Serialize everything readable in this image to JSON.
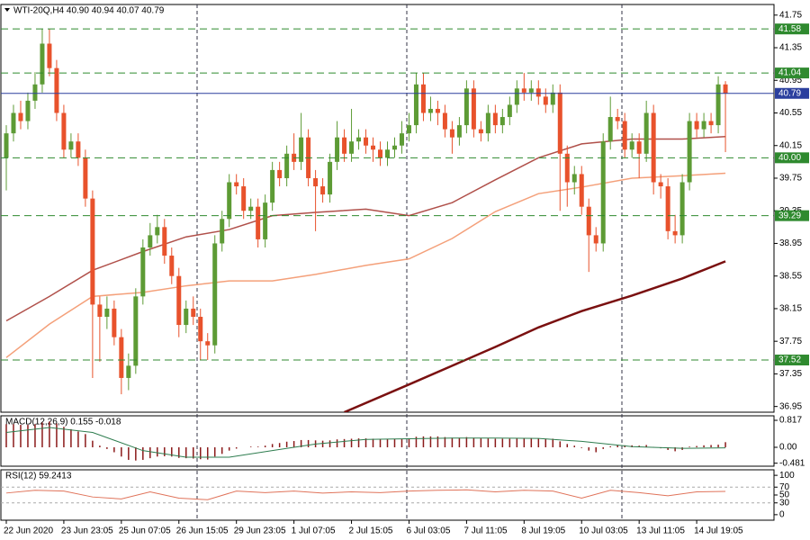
{
  "chart_data": {
    "type": "candlestick",
    "title": "WTI-20Q,H4  40.90 40.94 40.07 40.79",
    "xlim": [
      -0.75,
      106.75
    ],
    "xticks": [
      {
        "value": 0,
        "label": "22 Jun 2020"
      },
      {
        "value": 8,
        "label": "23 Jun 23:05"
      },
      {
        "value": 16,
        "label": "25 Jun 07:05"
      },
      {
        "value": 24,
        "label": "26 Jun 15:05"
      },
      {
        "value": 32,
        "label": "29 Jun 23:05"
      },
      {
        "value": 40,
        "label": "1 Jul 07:05"
      },
      {
        "value": 48,
        "label": "2 Jul 15:05"
      },
      {
        "value": 56,
        "label": "6 Jul 03:05"
      },
      {
        "value": 64,
        "label": "7 Jul 11:05"
      },
      {
        "value": 72,
        "label": "8 Jul 19:05"
      },
      {
        "value": 80,
        "label": "10 Jul 03:05"
      },
      {
        "value": 88,
        "label": "13 Jul 11:05"
      },
      {
        "value": 96,
        "label": "14 Jul 19:05"
      }
    ],
    "ylim": [
      36.88,
      41.88
    ],
    "yticks": [
      41.75,
      41.35,
      40.95,
      40.55,
      40.15,
      39.75,
      39.35,
      38.95,
      38.55,
      38.15,
      37.75,
      37.35,
      36.95
    ],
    "bull_color": "#5d9b35",
    "bear_color": "#e8522c",
    "candles": {
      "open": [
        40.0,
        40.3,
        40.55,
        40.45,
        40.7,
        40.9,
        41.4,
        41.1,
        40.55,
        40.1,
        40.2,
        40.0,
        39.5,
        38.2,
        38.05,
        38.15,
        37.8,
        37.3,
        37.45,
        38.3,
        38.9,
        39.05,
        39.15,
        38.8,
        38.55,
        37.95,
        38.15,
        38.05,
        37.75,
        37.7,
        38.95,
        39.25,
        39.7,
        39.65,
        39.35,
        39.4,
        39.0,
        39.45,
        39.85,
        39.75,
        40.05,
        39.95,
        40.25,
        39.75,
        39.65,
        39.55,
        39.95,
        40.25,
        40.05,
        40.2,
        40.25,
        40.15,
        40.1,
        40.0,
        40.1,
        40.15,
        40.3,
        40.4,
        40.9,
        40.55,
        40.6,
        40.55,
        40.35,
        40.25,
        40.4,
        40.85,
        40.35,
        40.3,
        40.55,
        40.4,
        40.5,
        40.65,
        40.85,
        40.8,
        40.85,
        40.75,
        40.65,
        40.8,
        40.05,
        39.7,
        39.8,
        39.4,
        39.05,
        38.95,
        40.2,
        40.5,
        40.45,
        40.1,
        40.2,
        40.05,
        40.55,
        39.7,
        39.65,
        39.1,
        39.05,
        39.7,
        40.45,
        40.35,
        40.45,
        40.4,
        40.9
      ],
      "high": [
        40.4,
        40.65,
        40.7,
        40.8,
        41.05,
        41.58,
        41.58,
        41.2,
        40.65,
        40.3,
        40.3,
        40.1,
        39.6,
        38.3,
        38.3,
        38.25,
        37.9,
        37.6,
        38.4,
        39.0,
        39.2,
        39.3,
        39.25,
        38.9,
        38.65,
        38.25,
        38.3,
        38.15,
        37.85,
        39.05,
        39.35,
        39.8,
        39.8,
        39.75,
        39.5,
        39.5,
        39.55,
        39.95,
        39.95,
        40.15,
        40.3,
        40.55,
        40.35,
        39.85,
        39.75,
        40.05,
        40.45,
        40.35,
        40.6,
        40.35,
        40.35,
        40.25,
        40.2,
        40.2,
        40.25,
        40.45,
        40.55,
        41.04,
        41.04,
        40.75,
        40.7,
        40.65,
        40.45,
        40.5,
        40.95,
        40.95,
        40.45,
        40.65,
        40.65,
        40.6,
        40.75,
        40.95,
        41.04,
        40.95,
        40.95,
        40.85,
        40.9,
        40.9,
        40.15,
        39.9,
        39.9,
        39.5,
        39.15,
        40.3,
        40.75,
        40.6,
        40.55,
        40.3,
        40.3,
        40.7,
        40.65,
        39.8,
        39.75,
        39.3,
        39.8,
        40.55,
        40.55,
        40.55,
        40.55,
        41.0,
        40.94
      ],
      "low": [
        39.6,
        40.2,
        40.35,
        40.35,
        40.6,
        40.8,
        41.0,
        40.45,
        40.0,
        40.0,
        39.9,
        39.4,
        37.3,
        37.5,
        37.9,
        37.7,
        37.1,
        37.15,
        37.35,
        38.2,
        38.8,
        38.95,
        38.7,
        38.45,
        37.8,
        37.85,
        37.95,
        37.52,
        37.52,
        37.6,
        38.85,
        39.15,
        39.55,
        39.25,
        39.25,
        38.9,
        38.9,
        39.35,
        39.65,
        39.65,
        39.85,
        39.85,
        39.65,
        39.1,
        39.45,
        39.45,
        39.85,
        39.95,
        39.95,
        40.1,
        40.05,
        39.95,
        39.9,
        39.9,
        40.0,
        40.05,
        40.2,
        40.3,
        40.45,
        40.45,
        40.4,
        40.25,
        40.05,
        40.15,
        40.3,
        40.25,
        40.2,
        40.2,
        40.3,
        40.3,
        40.4,
        40.55,
        40.7,
        40.7,
        40.65,
        40.55,
        40.55,
        39.35,
        39.4,
        39.55,
        39.3,
        38.6,
        38.85,
        38.85,
        40.1,
        40.35,
        40.0,
        40.0,
        39.75,
        39.95,
        39.55,
        39.5,
        39.0,
        38.95,
        38.95,
        39.6,
        40.25,
        40.25,
        40.3,
        40.3,
        40.07
      ],
      "close": [
        40.3,
        40.55,
        40.45,
        40.7,
        40.9,
        41.4,
        41.1,
        40.55,
        40.1,
        40.2,
        40.0,
        39.5,
        38.2,
        38.05,
        38.15,
        37.8,
        37.3,
        37.45,
        38.3,
        38.9,
        39.05,
        39.15,
        38.8,
        38.55,
        37.95,
        38.15,
        38.05,
        37.75,
        37.7,
        38.95,
        39.25,
        39.7,
        39.65,
        39.35,
        39.4,
        39.0,
        39.45,
        39.85,
        39.75,
        40.05,
        39.95,
        40.25,
        39.75,
        39.65,
        39.55,
        39.95,
        40.25,
        40.05,
        40.2,
        40.25,
        40.15,
        40.1,
        40.0,
        40.1,
        40.15,
        40.3,
        40.4,
        40.9,
        40.55,
        40.6,
        40.55,
        40.35,
        40.25,
        40.4,
        40.85,
        40.35,
        40.3,
        40.55,
        40.4,
        40.5,
        40.65,
        40.85,
        40.8,
        40.85,
        40.75,
        40.65,
        40.8,
        40.05,
        39.7,
        39.8,
        39.4,
        39.05,
        38.95,
        40.2,
        40.5,
        40.45,
        40.1,
        40.2,
        40.05,
        40.55,
        39.7,
        39.65,
        39.1,
        39.05,
        39.7,
        40.45,
        40.35,
        40.45,
        40.4,
        40.9,
        40.79
      ]
    },
    "overlays": [
      {
        "color": "#b0504a",
        "x": [
          0,
          6,
          12,
          19,
          25,
          31,
          37,
          43,
          50,
          56,
          62,
          68,
          74,
          80,
          87,
          94,
          100
        ],
        "values": [
          38.0,
          38.3,
          38.62,
          38.85,
          39.03,
          39.12,
          39.29,
          39.33,
          39.37,
          39.29,
          39.45,
          39.73,
          40.0,
          40.17,
          40.23,
          40.23,
          40.26
        ]
      },
      {
        "color": "#f4a07a",
        "x": [
          0,
          6,
          12,
          19,
          25,
          31,
          37,
          43,
          50,
          56,
          62,
          68,
          74,
          80,
          87,
          94,
          100
        ],
        "values": [
          37.55,
          37.96,
          38.3,
          38.35,
          38.43,
          38.49,
          38.49,
          38.57,
          38.68,
          38.76,
          39.01,
          39.34,
          39.56,
          39.64,
          39.75,
          39.78,
          39.81
        ]
      },
      {
        "color": "#7a1010",
        "x": [
          47,
          56,
          62,
          68,
          74,
          80,
          87,
          94,
          100
        ],
        "values": [
          36.88,
          37.22,
          37.45,
          37.68,
          37.92,
          38.12,
          38.31,
          38.52,
          38.73
        ]
      }
    ],
    "levels": {
      "color": "#2f8a2f",
      "values": [
        41.58,
        41.04,
        {
          "value": 40,
          "label": "40.00"
        },
        39.29,
        37.52
      ]
    },
    "price_line": {
      "color": "#2b3f9e",
      "value": 40.79
    },
    "macd": {
      "title": "MACD(12,26,9) 0.155 -0.018",
      "ylim": [
        -0.572,
        0.954
      ],
      "yticks": [
        0.817,
        {
          "value": 0,
          "label": "0.00"
        },
        -0.481
      ],
      "histogram_color": "#8b1a1a",
      "histogram": [
        0.7,
        0.7,
        0.68,
        0.68,
        0.7,
        0.75,
        0.78,
        0.72,
        0.62,
        0.55,
        0.48,
        0.4,
        0.2,
        0.05,
        -0.05,
        -0.15,
        -0.28,
        -0.38,
        -0.4,
        -0.38,
        -0.33,
        -0.28,
        -0.27,
        -0.28,
        -0.32,
        -0.33,
        -0.34,
        -0.36,
        -0.37,
        -0.28,
        -0.2,
        -0.1,
        -0.04,
        0.0,
        0.02,
        0.02,
        0.05,
        0.1,
        0.13,
        0.17,
        0.19,
        0.22,
        0.22,
        0.21,
        0.2,
        0.21,
        0.24,
        0.25,
        0.26,
        0.27,
        0.27,
        0.26,
        0.25,
        0.25,
        0.25,
        0.26,
        0.27,
        0.32,
        0.33,
        0.33,
        0.33,
        0.31,
        0.29,
        0.29,
        0.31,
        0.29,
        0.27,
        0.27,
        0.26,
        0.26,
        0.26,
        0.27,
        0.27,
        0.28,
        0.27,
        0.26,
        0.26,
        0.18,
        0.1,
        0.05,
        -0.02,
        -0.1,
        -0.15,
        -0.05,
        0.03,
        0.07,
        0.06,
        0.06,
        0.05,
        0.07,
        0.01,
        -0.03,
        -0.08,
        -0.12,
        -0.08,
        0.02,
        0.04,
        0.06,
        0.07,
        0.08,
        0.155
      ],
      "signal": {
        "color": "#2e7d4f",
        "x": [
          0,
          6,
          12,
          19,
          25,
          31,
          37,
          43,
          50,
          56,
          62,
          68,
          74,
          80,
          87,
          94,
          100
        ],
        "values": [
          0.45,
          0.6,
          0.45,
          -0.1,
          -0.3,
          -0.3,
          -0.1,
          0.1,
          0.24,
          0.26,
          0.28,
          0.28,
          0.27,
          0.18,
          0.02,
          -0.03,
          -0.018
        ]
      }
    },
    "rsi": {
      "title": "RSI(12) 59.2413",
      "ylim": [
        -14,
        114
      ],
      "yticks": [
        100,
        70,
        50,
        30,
        0
      ],
      "levels": [
        70,
        30
      ],
      "color": "#e0735a",
      "x": [
        0,
        4,
        8,
        12,
        16,
        20,
        24,
        28,
        32,
        36,
        40,
        44,
        48,
        52,
        56,
        60,
        64,
        68,
        72,
        76,
        80,
        84,
        88,
        92,
        96,
        100
      ],
      "values": [
        55,
        62,
        60,
        45,
        40,
        58,
        42,
        38,
        60,
        56,
        60,
        55,
        58,
        56,
        60,
        62,
        63,
        58,
        62,
        60,
        42,
        62,
        56,
        48,
        58,
        59.2413
      ]
    }
  }
}
